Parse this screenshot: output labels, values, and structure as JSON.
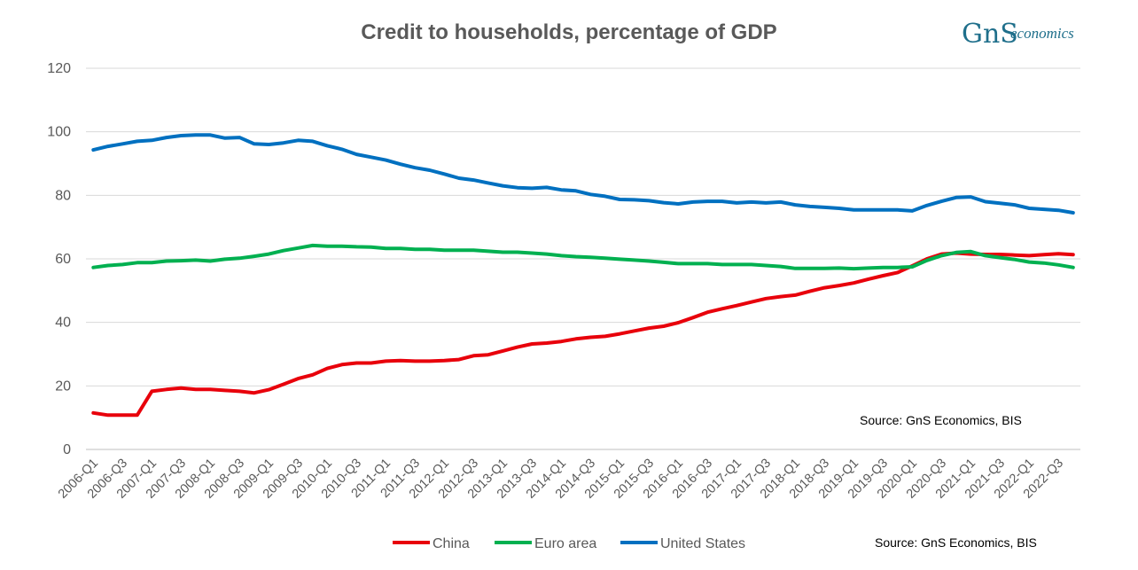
{
  "logo": {
    "brand": "GnS",
    "suffix": "economics"
  },
  "chart_data": {
    "type": "line",
    "title": "Credit to households, percentage of GDP",
    "xlabel": "",
    "ylabel": "",
    "ylim": [
      0,
      120
    ],
    "yticks": [
      0,
      20,
      40,
      60,
      80,
      100,
      120
    ],
    "grid": true,
    "legend_position": "bottom",
    "x": [
      "2006-Q1",
      "2006-Q2",
      "2006-Q3",
      "2006-Q4",
      "2007-Q1",
      "2007-Q2",
      "2007-Q3",
      "2007-Q4",
      "2008-Q1",
      "2008-Q2",
      "2008-Q3",
      "2008-Q4",
      "2009-Q1",
      "2009-Q2",
      "2009-Q3",
      "2009-Q4",
      "2010-Q1",
      "2010-Q2",
      "2010-Q3",
      "2010-Q4",
      "2011-Q1",
      "2011-Q2",
      "2011-Q3",
      "2011-Q4",
      "2012-Q1",
      "2012-Q2",
      "2012-Q3",
      "2012-Q4",
      "2013-Q1",
      "2013-Q2",
      "2013-Q3",
      "2013-Q4",
      "2014-Q1",
      "2014-Q2",
      "2014-Q3",
      "2014-Q4",
      "2015-Q1",
      "2015-Q2",
      "2015-Q3",
      "2015-Q4",
      "2016-Q1",
      "2016-Q2",
      "2016-Q3",
      "2016-Q4",
      "2017-Q1",
      "2017-Q2",
      "2017-Q3",
      "2017-Q4",
      "2018-Q1",
      "2018-Q2",
      "2018-Q3",
      "2018-Q4",
      "2019-Q1",
      "2019-Q2",
      "2019-Q3",
      "2019-Q4",
      "2020-Q1",
      "2020-Q2",
      "2020-Q3",
      "2020-Q4",
      "2021-Q1",
      "2021-Q2",
      "2021-Q3",
      "2021-Q4",
      "2022-Q1",
      "2022-Q2",
      "2022-Q3",
      "2022-Q4"
    ],
    "xtick_labels": [
      "2006-Q1",
      "2006-Q3",
      "2007-Q1",
      "2007-Q3",
      "2008-Q1",
      "2008-Q3",
      "2009-Q1",
      "2009-Q3",
      "2010-Q1",
      "2010-Q3",
      "2011-Q1",
      "2011-Q3",
      "2012-Q1",
      "2012-Q3",
      "2013-Q1",
      "2013-Q3",
      "2014-Q1",
      "2014-Q3",
      "2015-Q1",
      "2015-Q3",
      "2016-Q1",
      "2016-Q3",
      "2017-Q1",
      "2017-Q3",
      "2018-Q1",
      "2018-Q3",
      "2019-Q1",
      "2019-Q3",
      "2020-Q1",
      "2020-Q3",
      "2021-Q1",
      "2021-Q3",
      "2022-Q1",
      "2022-Q3"
    ],
    "series": [
      {
        "name": "China",
        "color": "#e8000b",
        "values": [
          11.5,
          10.8,
          10.8,
          10.8,
          18.3,
          18.9,
          19.3,
          18.9,
          18.9,
          18.6,
          18.3,
          17.8,
          18.8,
          20.5,
          22.3,
          23.5,
          25.5,
          26.7,
          27.2,
          27.2,
          27.8,
          28.0,
          27.8,
          27.8,
          28.0,
          28.3,
          29.5,
          29.8,
          31.0,
          32.2,
          33.2,
          33.5,
          34.0,
          34.8,
          35.3,
          35.6,
          36.4,
          37.3,
          38.2,
          38.8,
          39.9,
          41.5,
          43.2,
          44.3,
          45.3,
          46.4,
          47.5,
          48.1,
          48.6,
          49.8,
          50.9,
          51.6,
          52.4,
          53.6,
          54.7,
          55.7,
          57.8,
          60.0,
          61.5,
          61.8,
          61.5,
          61.4,
          61.4,
          61.2,
          61.0,
          61.3,
          61.6,
          61.3
        ]
      },
      {
        "name": "Euro area",
        "color": "#00b050",
        "values": [
          57.3,
          57.9,
          58.2,
          58.8,
          58.8,
          59.3,
          59.4,
          59.6,
          59.3,
          59.9,
          60.2,
          60.8,
          61.5,
          62.6,
          63.4,
          64.2,
          64.0,
          64.0,
          63.8,
          63.7,
          63.3,
          63.3,
          63.0,
          63.0,
          62.7,
          62.7,
          62.7,
          62.4,
          62.1,
          62.1,
          61.8,
          61.5,
          61.0,
          60.7,
          60.5,
          60.2,
          59.9,
          59.6,
          59.3,
          58.9,
          58.5,
          58.5,
          58.5,
          58.2,
          58.2,
          58.2,
          57.9,
          57.6,
          57.0,
          57.0,
          57.0,
          57.1,
          56.9,
          57.1,
          57.3,
          57.3,
          57.5,
          59.5,
          61.0,
          62.0,
          62.3,
          61.0,
          60.4,
          59.8,
          59.0,
          58.7,
          58.1,
          57.3
        ]
      },
      {
        "name": "United States",
        "color": "#0070c0",
        "values": [
          94.3,
          95.4,
          96.2,
          97.0,
          97.3,
          98.2,
          98.8,
          99.0,
          99.0,
          98.0,
          98.2,
          96.2,
          96.0,
          96.5,
          97.3,
          97.0,
          95.6,
          94.5,
          92.9,
          92.0,
          91.1,
          89.8,
          88.7,
          87.9,
          86.7,
          85.4,
          84.8,
          83.9,
          83.0,
          82.4,
          82.2,
          82.5,
          81.7,
          81.4,
          80.3,
          79.7,
          78.7,
          78.6,
          78.3,
          77.7,
          77.3,
          77.9,
          78.1,
          78.1,
          77.6,
          77.9,
          77.6,
          77.9,
          77.0,
          76.5,
          76.2,
          75.9,
          75.4,
          75.4,
          75.4,
          75.4,
          75.1,
          76.8,
          78.1,
          79.3,
          79.5,
          78.0,
          77.5,
          77.0,
          75.9,
          75.6,
          75.3,
          74.5
        ]
      }
    ],
    "annotations": [
      "Source: GnS Economics, BIS"
    ],
    "footer_note": "Source: GnS Economics, BIS"
  }
}
